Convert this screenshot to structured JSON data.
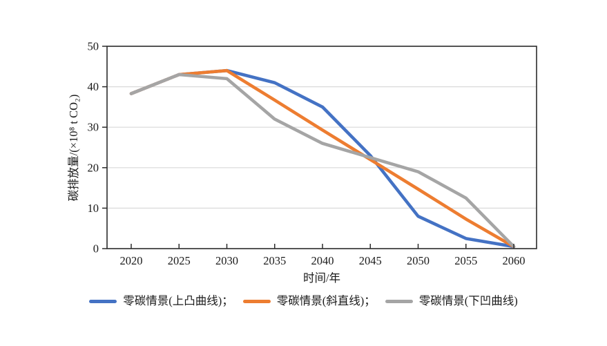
{
  "colors": {
    "background": "#ffffff",
    "plot_border": "#2b2b2b",
    "gridline": "#d9d9d9",
    "tick": "#2b2b2b",
    "text": "#1a1a1a"
  },
  "chart_data": {
    "type": "line",
    "title": "",
    "xlabel": "时间/年",
    "ylabel": "碳排放量/(×10⁸ t CO₂)",
    "x": [
      2020,
      2025,
      2030,
      2035,
      2040,
      2045,
      2050,
      2055,
      2060
    ],
    "x_range_px_note": "x axis ticks 2020-2060 step 5",
    "ylim": [
      0,
      50
    ],
    "yticks": [
      0,
      10,
      20,
      30,
      40,
      50
    ],
    "grid": "horizontal",
    "legend_position": "bottom",
    "series": [
      {
        "name": "零碳情景(上凸曲线)",
        "color": "#4472C4",
        "values": [
          38.3,
          43,
          44,
          41,
          35,
          23,
          8,
          2.5,
          0.5
        ]
      },
      {
        "name": "零碳情景(斜直线)",
        "color": "#ED7D31",
        "values": [
          38.3,
          43,
          44,
          36.7,
          29.3,
          22,
          14.7,
          7.3,
          0.5
        ]
      },
      {
        "name": "零碳情景(下凹曲线)",
        "color": "#A5A5A5",
        "values": [
          38.3,
          43,
          42,
          32,
          26,
          22.5,
          19,
          12.5,
          0.5
        ]
      }
    ]
  },
  "legend": {
    "items": [
      {
        "text": "零碳情景(上凸曲线)；"
      },
      {
        "text": "零碳情景(斜直线)；"
      },
      {
        "text": "零碳情景(下凹曲线)"
      }
    ]
  }
}
